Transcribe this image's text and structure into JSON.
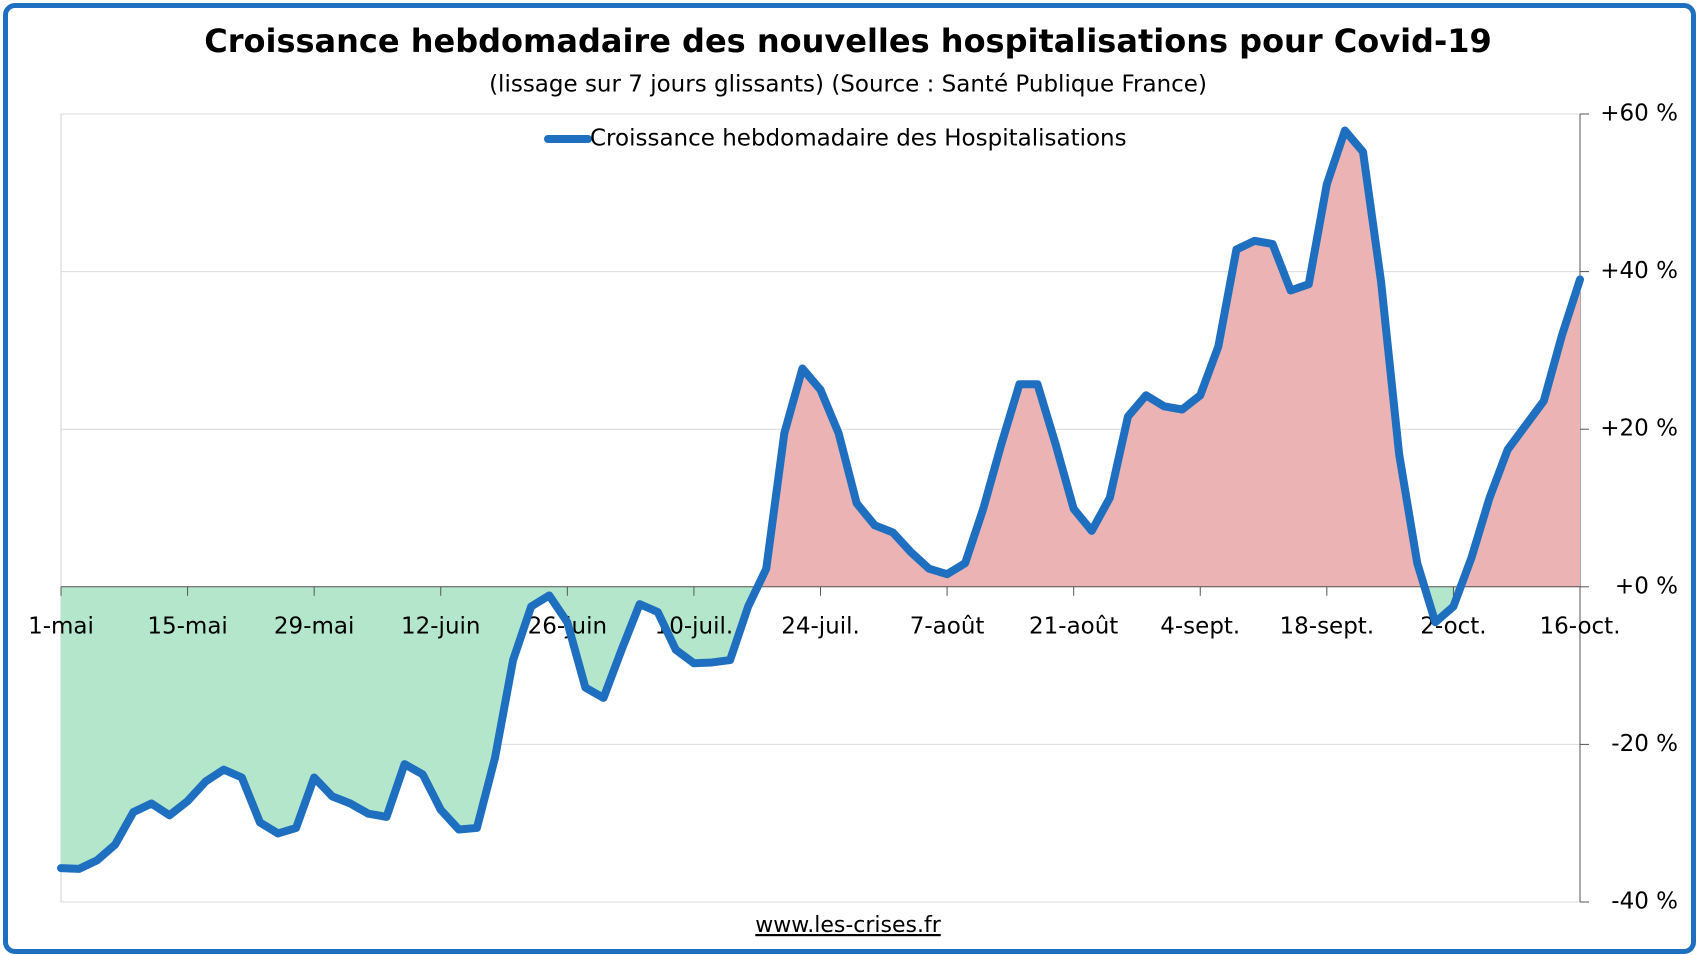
{
  "chart_data": {
    "type": "area-line",
    "title": "Croissance hebdomadaire des nouvelles hospitalisations pour Covid-19",
    "subtitle": "(lissage sur 7 jours glissants) (Source : Santé Publique France)",
    "footer": "www.les-crises.fr",
    "categories": [
      "1-mai",
      null,
      null,
      null,
      null,
      null,
      null,
      "15-mai",
      null,
      null,
      null,
      null,
      null,
      null,
      "29-mai",
      null,
      null,
      null,
      null,
      null,
      null,
      "12-juin",
      null,
      null,
      null,
      null,
      null,
      null,
      "26-juin",
      null,
      null,
      null,
      null,
      null,
      null,
      "10-juil.",
      null,
      null,
      null,
      null,
      null,
      null,
      "24-juil.",
      null,
      null,
      null,
      null,
      null,
      null,
      "7-août",
      null,
      null,
      null,
      null,
      null,
      null,
      "21-août",
      null,
      null,
      null,
      null,
      null,
      null,
      "4-sept.",
      null,
      null,
      null,
      null,
      null,
      null,
      "18-sept.",
      null,
      null,
      null,
      null,
      null,
      null,
      "2-oct.",
      null,
      null,
      null,
      null,
      null,
      null,
      "16-oct."
    ],
    "series": [
      {
        "name": "Croissance hebdomadaire des Hospitalisations",
        "color": "#1f6fc0",
        "values": [
          -35.7,
          -35.8,
          -34.7,
          -32.7,
          -28.6,
          -27.5,
          -29,
          -27.2,
          -24.7,
          -23.2,
          -24.2,
          -29.9,
          -31.3,
          -30.6,
          -24.2,
          -26.6,
          -27.5,
          -28.8,
          -29.2,
          -22.5,
          -23.8,
          -28.3,
          -30.8,
          -30.6,
          -21.7,
          -9.3,
          -2.5,
          -1.1,
          -4.5,
          -12.8,
          -14.1,
          -8,
          -2.2,
          -3.2,
          -8,
          -9.7,
          -9.6,
          -9.3,
          -2.5,
          2.3,
          19.5,
          27.7,
          25,
          19.5,
          10.6,
          7.8,
          6.9,
          4.4,
          2.3,
          1.6,
          3,
          9.9,
          18.1,
          25.7,
          25.7,
          18.1,
          9.9,
          7.1,
          11.3,
          21.6,
          24.3,
          22.9,
          22.5,
          24.3,
          30.5,
          42.8,
          43.9,
          43.5,
          37.6,
          38.4,
          51.1,
          57.9,
          55.2,
          38.7,
          16.8,
          3,
          -4.5,
          -2.5,
          3.7,
          11.3,
          17.4,
          20.5,
          23.6,
          31.9,
          39
        ]
      }
    ],
    "positive_fill": "#ebb3b3",
    "negative_fill": "#b3e6cb",
    "negative_tick_color": "#e00000",
    "ylim": [
      -40,
      60
    ],
    "yticks": [
      {
        "value": -40,
        "label": "-40 %"
      },
      {
        "value": -20,
        "label": "-20 %"
      },
      {
        "value": 0,
        "label": "+0 %"
      },
      {
        "value": 20,
        "label": "+20 %"
      },
      {
        "value": 40,
        "label": "+40 %"
      },
      {
        "value": 60,
        "label": "+60 %"
      }
    ],
    "grid": true,
    "legend": "top"
  }
}
